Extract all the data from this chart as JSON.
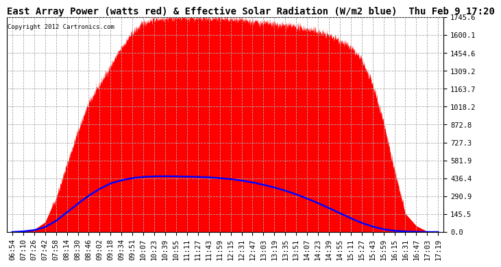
{
  "title": "East Array Power (watts red) & Effective Solar Radiation (W/m2 blue)  Thu Feb 9 17:20",
  "copyright": "Copyright 2012 Cartronics.com",
  "yticks": [
    0.0,
    145.5,
    290.9,
    436.4,
    581.9,
    727.3,
    872.8,
    1018.2,
    1163.7,
    1309.2,
    1454.6,
    1600.1,
    1745.6
  ],
  "xtick_labels": [
    "06:54",
    "07:10",
    "07:26",
    "07:42",
    "07:58",
    "08:14",
    "08:30",
    "08:46",
    "09:02",
    "09:18",
    "09:34",
    "09:51",
    "10:07",
    "10:23",
    "10:39",
    "10:55",
    "11:11",
    "11:27",
    "11:43",
    "11:59",
    "12:15",
    "12:31",
    "12:47",
    "13:03",
    "13:19",
    "13:35",
    "13:51",
    "14:07",
    "14:23",
    "14:39",
    "14:55",
    "15:11",
    "15:27",
    "15:43",
    "15:59",
    "16:15",
    "16:31",
    "16:47",
    "17:03",
    "17:19"
  ],
  "background_color": "#ffffff",
  "grid_color": "#aaaaaa",
  "red_fill_color": "red",
  "blue_line_color": "blue",
  "title_fontsize": 10,
  "tick_fontsize": 7.5,
  "ymax": 1745.6,
  "ymin": 0.0,
  "red_base": [
    0,
    0,
    20,
    80,
    280,
    550,
    820,
    1050,
    1200,
    1350,
    1500,
    1620,
    1700,
    1730,
    1740,
    1745,
    1745,
    1745,
    1740,
    1735,
    1730,
    1720,
    1710,
    1700,
    1690,
    1680,
    1670,
    1650,
    1630,
    1600,
    1560,
    1500,
    1400,
    1200,
    900,
    500,
    150,
    50,
    5,
    0
  ],
  "blue_base": [
    0,
    5,
    15,
    40,
    90,
    160,
    230,
    295,
    350,
    395,
    420,
    438,
    448,
    452,
    453,
    452,
    450,
    448,
    444,
    438,
    430,
    418,
    403,
    384,
    362,
    336,
    306,
    272,
    235,
    195,
    153,
    112,
    74,
    44,
    22,
    10,
    4,
    1,
    0,
    0
  ]
}
